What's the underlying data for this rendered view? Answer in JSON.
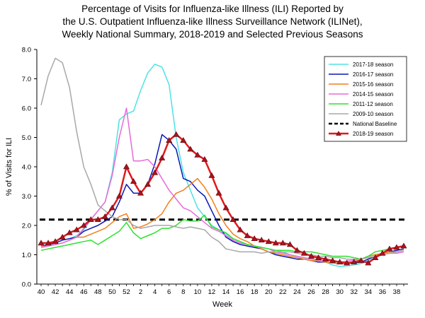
{
  "chart_data": {
    "type": "line",
    "title_lines": [
      "Percentage of Visits for Influenza-like Illness (ILI) Reported by",
      "the U.S. Outpatient Influenza-like Illness Surveillance Network (ILINet),",
      "Weekly National Summary, 2018-2019 and Selected Previous Seasons"
    ],
    "xlabel": "Week",
    "ylabel": "% of Visits for ILI",
    "ylim": [
      0,
      8
    ],
    "yticks": [
      "0.0",
      "1.0",
      "2.0",
      "3.0",
      "4.0",
      "5.0",
      "6.0",
      "7.0",
      "8.0"
    ],
    "x": [
      40,
      41,
      42,
      43,
      44,
      45,
      46,
      47,
      48,
      49,
      50,
      51,
      52,
      1,
      2,
      3,
      4,
      5,
      6,
      7,
      8,
      9,
      10,
      11,
      12,
      13,
      14,
      15,
      16,
      17,
      18,
      19,
      20,
      21,
      22,
      23,
      24,
      25,
      26,
      27,
      28,
      29,
      30,
      31,
      32,
      33,
      34,
      35,
      36,
      37,
      38,
      39
    ],
    "xtick_labels": [
      "40",
      "42",
      "44",
      "46",
      "48",
      "50",
      "52",
      "2",
      "4",
      "6",
      "8",
      "10",
      "12",
      "14",
      "16",
      "18",
      "20",
      "22",
      "24",
      "26",
      "28",
      "30",
      "32",
      "34",
      "36",
      "38"
    ],
    "legend_position": "top-right",
    "grid": false,
    "baseline": {
      "name": "National Baseline",
      "value": 2.2,
      "color": "#000000"
    },
    "series": [
      {
        "name": "2017-18 season",
        "color": "#4de3e3",
        "width": 1.5,
        "markers": false,
        "values": [
          1.3,
          1.35,
          1.4,
          1.5,
          1.55,
          1.65,
          1.85,
          2.2,
          2.5,
          2.8,
          3.8,
          5.6,
          5.8,
          5.9,
          6.6,
          7.2,
          7.5,
          7.4,
          6.8,
          5.0,
          3.8,
          3.2,
          2.6,
          2.3,
          2.0,
          1.85,
          1.7,
          1.55,
          1.45,
          1.35,
          1.3,
          1.25,
          1.2,
          1.15,
          1.1,
          1.0,
          0.95,
          0.9,
          0.85,
          0.8,
          0.75,
          0.65,
          0.6,
          0.62,
          0.65,
          0.7,
          0.8,
          0.9,
          1.0,
          1.05,
          1.1,
          1.15
        ]
      },
      {
        "name": "2016-17 season",
        "color": "#0a18b4",
        "width": 1.5,
        "markers": false,
        "values": [
          1.3,
          1.35,
          1.4,
          1.5,
          1.55,
          1.6,
          1.8,
          1.9,
          2.0,
          2.15,
          2.3,
          2.8,
          3.4,
          3.1,
          3.1,
          3.4,
          4.1,
          5.1,
          4.9,
          4.6,
          3.6,
          3.5,
          3.2,
          3.0,
          2.5,
          2.0,
          1.6,
          1.45,
          1.35,
          1.3,
          1.25,
          1.2,
          1.1,
          1.0,
          0.95,
          0.9,
          0.85,
          0.85,
          0.8,
          0.75,
          0.75,
          0.72,
          0.7,
          0.7,
          0.72,
          0.75,
          0.85,
          0.95,
          1.05,
          1.1,
          1.15,
          1.2
        ]
      },
      {
        "name": "2015-16 season",
        "color": "#f07f1c",
        "width": 1.5,
        "markers": false,
        "values": [
          1.3,
          1.3,
          1.35,
          1.4,
          1.5,
          1.6,
          1.6,
          1.7,
          1.8,
          1.9,
          2.1,
          2.3,
          2.4,
          1.9,
          1.95,
          2.05,
          2.2,
          2.4,
          2.8,
          3.1,
          3.2,
          3.4,
          3.6,
          3.3,
          2.9,
          2.4,
          2.0,
          1.7,
          1.55,
          1.45,
          1.3,
          1.2,
          1.1,
          1.05,
          1.0,
          0.95,
          0.9,
          0.85,
          0.8,
          0.78,
          0.75,
          0.72,
          0.7,
          0.72,
          0.75,
          0.85,
          0.95,
          1.0,
          1.05,
          1.1,
          1.1,
          1.15
        ]
      },
      {
        "name": "2014-15 season",
        "color": "#e86ad8",
        "width": 1.5,
        "markers": false,
        "values": [
          1.25,
          1.3,
          1.35,
          1.4,
          1.5,
          1.6,
          1.9,
          2.2,
          2.5,
          2.8,
          3.7,
          5.0,
          6.0,
          4.2,
          4.2,
          4.25,
          4.0,
          3.6,
          3.2,
          2.9,
          2.6,
          2.5,
          2.3,
          2.1,
          1.9,
          1.8,
          1.65,
          1.5,
          1.4,
          1.35,
          1.3,
          1.25,
          1.2,
          1.1,
          1.05,
          1.0,
          0.95,
          0.9,
          0.85,
          0.82,
          0.8,
          0.78,
          0.75,
          0.78,
          0.82,
          0.85,
          0.9,
          0.95,
          1.0,
          1.05,
          1.05,
          1.1
        ]
      },
      {
        "name": "2011-12 season",
        "color": "#2ee02e",
        "width": 1.5,
        "markers": false,
        "values": [
          1.15,
          1.2,
          1.25,
          1.3,
          1.35,
          1.4,
          1.45,
          1.5,
          1.35,
          1.5,
          1.65,
          1.8,
          2.1,
          1.75,
          1.55,
          1.65,
          1.75,
          1.9,
          1.9,
          2.0,
          2.2,
          2.15,
          2.15,
          2.35,
          1.95,
          1.85,
          1.75,
          1.55,
          1.45,
          1.35,
          1.3,
          1.25,
          1.2,
          1.15,
          1.15,
          1.15,
          1.1,
          1.1,
          1.1,
          1.05,
          1.0,
          0.95,
          0.95,
          0.95,
          0.9,
          0.85,
          0.95,
          1.1,
          1.15,
          1.2,
          1.25,
          1.3
        ]
      },
      {
        "name": "2009-10 season",
        "color": "#a8a8a8",
        "width": 1.5,
        "markers": false,
        "values": [
          6.1,
          7.1,
          7.7,
          7.55,
          6.7,
          5.2,
          4.0,
          3.4,
          2.7,
          2.5,
          2.3,
          2.2,
          2.2,
          2.0,
          1.9,
          1.95,
          2.0,
          2.0,
          2.0,
          1.95,
          1.9,
          1.95,
          1.9,
          1.85,
          1.6,
          1.45,
          1.2,
          1.15,
          1.1,
          1.1,
          1.1,
          1.05,
          1.1,
          1.1,
          1.1,
          1.1,
          1.05,
          1.0,
          1.0,
          0.95,
          0.95,
          0.9,
          0.9,
          0.85,
          0.85,
          0.85,
          0.9,
          0.95,
          1.0,
          1.05,
          1.1,
          1.15
        ]
      },
      {
        "name": "2018-19 season",
        "color": "#e0191e",
        "width": 2.5,
        "markers": true,
        "marker_color": "#a8141e",
        "values": [
          1.4,
          1.4,
          1.45,
          1.6,
          1.75,
          1.85,
          2.0,
          2.2,
          2.2,
          2.3,
          2.6,
          3.0,
          4.0,
          3.5,
          3.1,
          3.4,
          3.8,
          4.3,
          4.9,
          5.1,
          4.9,
          4.6,
          4.4,
          4.25,
          3.7,
          3.1,
          2.6,
          2.2,
          1.85,
          1.65,
          1.55,
          1.5,
          1.45,
          1.4,
          1.4,
          1.35,
          1.15,
          1.05,
          0.95,
          0.9,
          0.85,
          0.8,
          0.75,
          0.72,
          0.75,
          0.8,
          0.72,
          0.9,
          1.05,
          1.2,
          1.25,
          1.3
        ]
      }
    ]
  }
}
